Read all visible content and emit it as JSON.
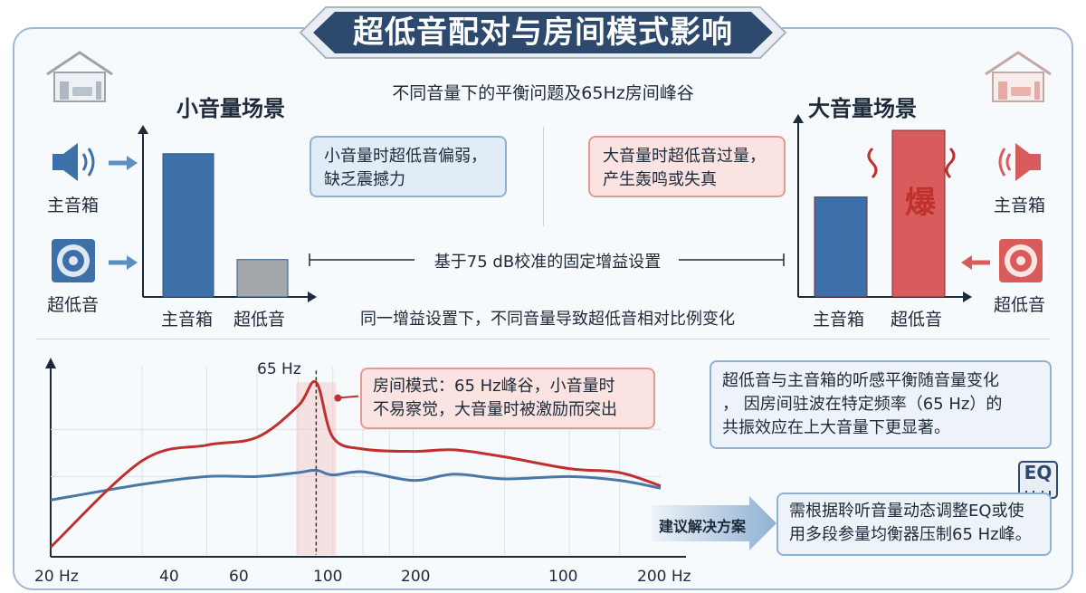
{
  "title": "超低音配对与房间模式影响",
  "subtitle": "不同音量下的平衡问题及65Hz房间峰谷",
  "left_scene": {
    "title": "小音量场景",
    "speaker_label": "主音箱",
    "sub_label": "超低音",
    "note": [
      "小音量时超低音偏弱，",
      "缺乏震撼力"
    ]
  },
  "right_scene": {
    "title": "大音量场景",
    "speaker_label": "主音箱",
    "sub_label": "超低音",
    "note": [
      "大音量时超低音过量，",
      "产生轰鸣或失真"
    ],
    "boom_text": "爆"
  },
  "chart_data": [
    {
      "type": "bar",
      "categories": [
        "主音箱",
        "超低音"
      ],
      "values": [
        0.92,
        0.24
      ],
      "colors": [
        "#3d6fa8",
        "#a4a8ad"
      ]
    },
    {
      "type": "bar",
      "categories": [
        "主音箱",
        "超低音"
      ],
      "values": [
        0.6,
        1.0
      ],
      "colors": [
        "#3d6fa8",
        "#d95c5c"
      ]
    },
    {
      "type": "line",
      "x": [
        20,
        30,
        40,
        50,
        60,
        65,
        70,
        80,
        100,
        120,
        150,
        200,
        250,
        300
      ],
      "x_tick_labels": [
        "20 Hz",
        "40",
        "60",
        "100",
        "200",
        "100",
        "200 Hz"
      ],
      "series": [
        {
          "color": "#c0302e",
          "values": [
            -9,
            2,
            4,
            5,
            9,
            12,
            5,
            3.5,
            3.2,
            3.4,
            2.5,
            1.0,
            0.5,
            -1.2
          ]
        },
        {
          "color": "#4a78a6",
          "values": [
            -3,
            -1,
            0,
            0,
            0.5,
            0.8,
            0.2,
            0.6,
            -0.5,
            0.3,
            -0.3,
            0,
            -0.5,
            -1.5
          ]
        }
      ],
      "peak_label": "65 Hz"
    }
  ],
  "gain_setting_label": "基于75 dB校准的固定增益设置",
  "same_gain_label": "同一增益设置下，不同音量导致超低音相对比例变化",
  "room_mode_note": [
    "房间模式：65 Hz峰谷，小音量时",
    "不易察觉，大音量时被激励而突出"
  ],
  "explain_note": [
    "超低音与主音箱的听感平衡随音量变化",
    "，  因房间驻波在特定频率（65 Hz）的",
    "共振效应在上大音量下更显著。"
  ],
  "solution": {
    "arrow_label": "建议解决方案",
    "text": [
      "需根据聆听音量动态调整EQ或使",
      "用多段参量均衡器压制65 Hz峰。"
    ],
    "eq_icon_text": "EQ"
  },
  "colors": {
    "blue": "#3d6fa8",
    "red": "#c0302e",
    "navy": "#2d4a6e"
  }
}
